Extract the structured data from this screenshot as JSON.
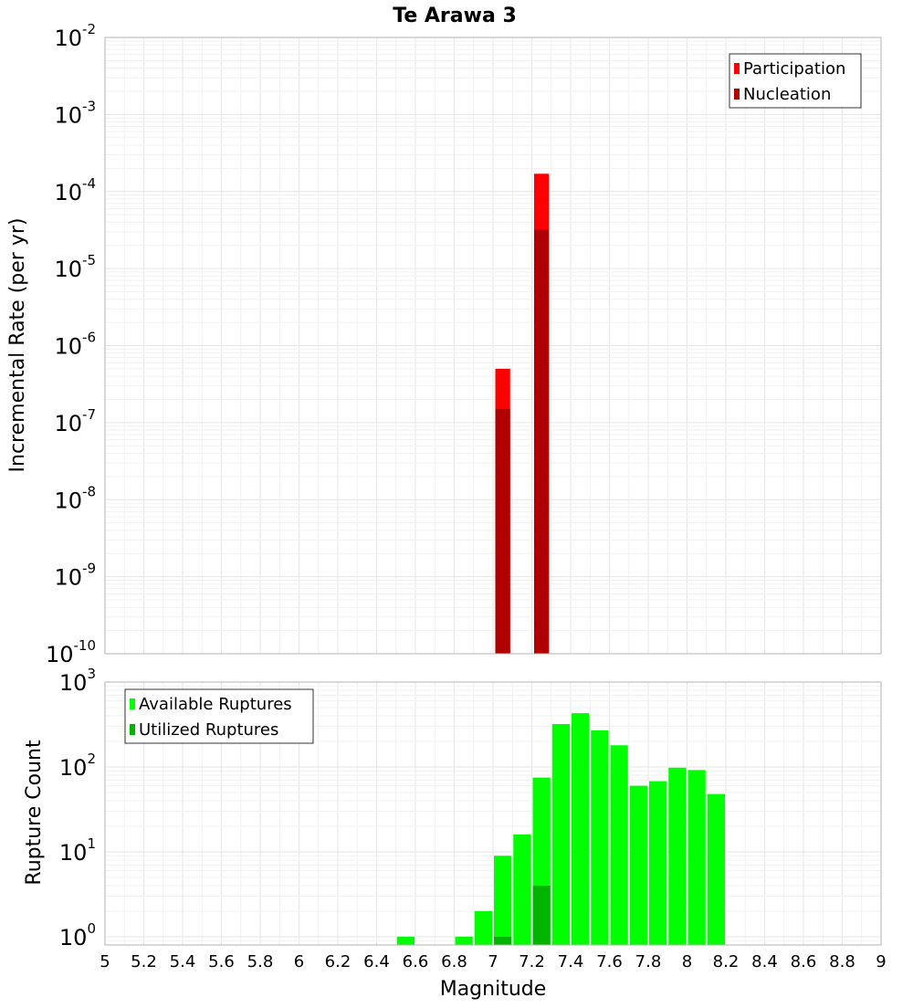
{
  "chart_data": [
    {
      "type": "bar",
      "title": "Te Arawa 3",
      "xlabel": "",
      "ylabel": "Incremental Rate (per yr)",
      "yscale": "log",
      "ylim_exponents": [
        -10,
        -2
      ],
      "xlim": [
        5,
        9
      ],
      "bin_width": 0.1,
      "grid": true,
      "legend_position": "top-right",
      "series": [
        {
          "name": "Participation",
          "color": "#ff0000",
          "points": [
            {
              "x": 7.05,
              "y": 5e-07
            },
            {
              "x": 7.25,
              "y": 0.00017
            }
          ]
        },
        {
          "name": "Nucleation",
          "color": "#b10000",
          "points": [
            {
              "x": 7.05,
              "y": 1.5e-07
            },
            {
              "x": 7.25,
              "y": 3.2e-05
            }
          ]
        }
      ]
    },
    {
      "type": "bar",
      "title": "",
      "xlabel": "Magnitude",
      "ylabel": "Rupture Count",
      "yscale": "log",
      "ylim_exponents": [
        0,
        3
      ],
      "ymin_value": 0.8,
      "xlim": [
        5,
        9
      ],
      "bin_width": 0.1,
      "grid": true,
      "legend_position": "top-left",
      "x_ticks": [
        "5",
        "5.2",
        "5.4",
        "5.6",
        "5.8",
        "6",
        "6.2",
        "6.4",
        "6.6",
        "6.8",
        "7",
        "7.2",
        "7.4",
        "7.6",
        "7.8",
        "8",
        "8.2",
        "8.4",
        "8.6",
        "8.8",
        "9"
      ],
      "series": [
        {
          "name": "Available Ruptures",
          "color": "#00ff00",
          "points": [
            {
              "x": 6.55,
              "y": 1
            },
            {
              "x": 6.85,
              "y": 1
            },
            {
              "x": 6.95,
              "y": 2
            },
            {
              "x": 7.05,
              "y": 9
            },
            {
              "x": 7.15,
              "y": 16
            },
            {
              "x": 7.25,
              "y": 75
            },
            {
              "x": 7.35,
              "y": 320
            },
            {
              "x": 7.45,
              "y": 430
            },
            {
              "x": 7.55,
              "y": 270
            },
            {
              "x": 7.65,
              "y": 180
            },
            {
              "x": 7.75,
              "y": 60
            },
            {
              "x": 7.85,
              "y": 68
            },
            {
              "x": 7.95,
              "y": 98
            },
            {
              "x": 8.05,
              "y": 92
            },
            {
              "x": 8.15,
              "y": 48
            }
          ]
        },
        {
          "name": "Utilized Ruptures",
          "color": "#00b400",
          "points": [
            {
              "x": 7.05,
              "y": 1
            },
            {
              "x": 7.25,
              "y": 4
            }
          ]
        }
      ]
    }
  ]
}
